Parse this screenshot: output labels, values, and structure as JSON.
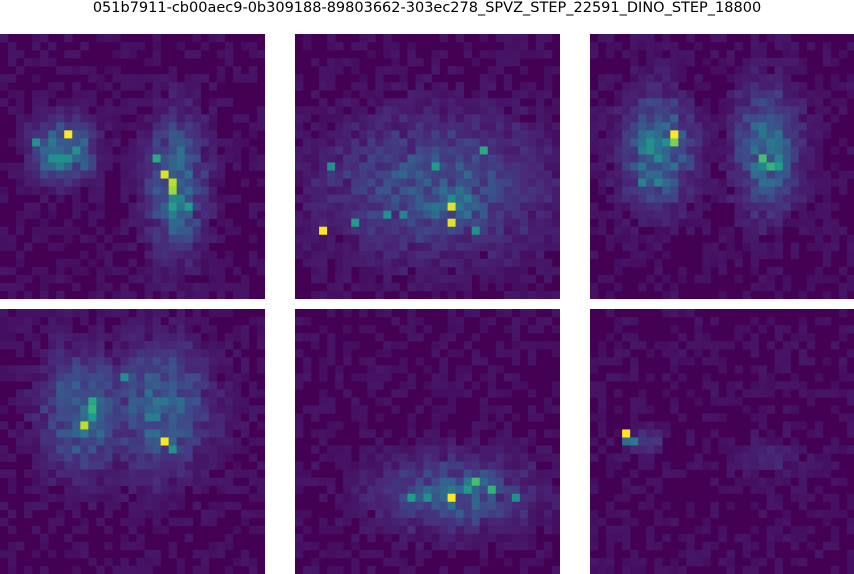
{
  "title": "051b7911-cb00aec9-0b309188-89803662-303ec278_SPVZ_STEP_22591_DINO_STEP_18800",
  "colormap": "viridis",
  "colors": {
    "background": "#ffffff",
    "low": "#440154",
    "high": "#fde725"
  },
  "chart_data": [
    {
      "type": "heatmap",
      "grid": [
        33,
        33
      ],
      "axes": "off",
      "value_range": [
        0,
        1
      ],
      "blobs": [
        {
          "col": 7.5,
          "row": 14,
          "rx": 3.2,
          "ry": 3.2,
          "v": 0.45
        },
        {
          "col": 21.5,
          "row": 18.5,
          "rx": 3.2,
          "ry": 7.5,
          "v": 0.32
        },
        {
          "col": 21,
          "row": 20,
          "rx": 1.2,
          "ry": 3,
          "v": 0.45
        }
      ],
      "hot_cells": [
        {
          "col": 8,
          "row": 12,
          "v": 1.0
        },
        {
          "col": 20,
          "row": 17,
          "v": 0.95
        },
        {
          "col": 21,
          "row": 18,
          "v": 0.9
        },
        {
          "col": 21,
          "row": 19,
          "v": 0.85
        },
        {
          "col": 19,
          "row": 15,
          "v": 0.6
        },
        {
          "col": 4,
          "row": 13,
          "v": 0.5
        },
        {
          "col": 23,
          "row": 21,
          "v": 0.55
        }
      ]
    },
    {
      "type": "heatmap",
      "grid": [
        33,
        33
      ],
      "axes": "off",
      "value_range": [
        0,
        1
      ],
      "blobs": [
        {
          "col": 17,
          "row": 18.5,
          "rx": 12,
          "ry": 7.5,
          "v": 0.22
        },
        {
          "col": 19,
          "row": 20,
          "rx": 6,
          "ry": 4.5,
          "v": 0.3
        }
      ],
      "hot_cells": [
        {
          "col": 3,
          "row": 24,
          "v": 1.0
        },
        {
          "col": 19,
          "row": 21,
          "v": 0.95
        },
        {
          "col": 19,
          "row": 23,
          "v": 0.95
        },
        {
          "col": 23,
          "row": 14,
          "v": 0.6
        },
        {
          "col": 17,
          "row": 16,
          "v": 0.55
        },
        {
          "col": 11,
          "row": 22,
          "v": 0.5
        },
        {
          "col": 7,
          "row": 23,
          "v": 0.55
        },
        {
          "col": 4,
          "row": 16,
          "v": 0.5
        },
        {
          "col": 22,
          "row": 24,
          "v": 0.5
        },
        {
          "col": 13,
          "row": 22,
          "v": 0.45
        }
      ]
    },
    {
      "type": "heatmap",
      "grid": [
        33,
        33
      ],
      "axes": "off",
      "value_range": [
        0,
        1
      ],
      "blobs": [
        {
          "col": 8,
          "row": 14,
          "rx": 3.8,
          "ry": 6.2,
          "v": 0.35
        },
        {
          "col": 21.5,
          "row": 14,
          "rx": 3.5,
          "ry": 6.5,
          "v": 0.34
        }
      ],
      "hot_cells": [
        {
          "col": 10,
          "row": 12,
          "v": 1.0
        },
        {
          "col": 10,
          "row": 13,
          "v": 0.8
        },
        {
          "col": 21,
          "row": 15,
          "v": 0.7
        },
        {
          "col": 22,
          "row": 16,
          "v": 0.65
        },
        {
          "col": 23,
          "row": 16,
          "v": 0.55
        },
        {
          "col": 9,
          "row": 13,
          "v": 0.5
        },
        {
          "col": 6,
          "row": 18,
          "v": 0.45
        },
        {
          "col": 8,
          "row": 18,
          "v": 0.45
        }
      ]
    },
    {
      "type": "heatmap",
      "grid": [
        33,
        33
      ],
      "axes": "off",
      "value_range": [
        0,
        1
      ],
      "blobs": [
        {
          "col": 10,
          "row": 12.5,
          "rx": 4.5,
          "ry": 6.5,
          "v": 0.3
        },
        {
          "col": 19.5,
          "row": 12,
          "rx": 5.5,
          "ry": 7,
          "v": 0.28
        },
        {
          "col": 11,
          "row": 12.5,
          "rx": 1.3,
          "ry": 3.5,
          "v": 0.45
        }
      ],
      "hot_cells": [
        {
          "col": 20,
          "row": 16,
          "v": 1.0
        },
        {
          "col": 10,
          "row": 14,
          "v": 0.9
        },
        {
          "col": 11,
          "row": 11,
          "v": 0.6
        },
        {
          "col": 15,
          "row": 8,
          "v": 0.5
        },
        {
          "col": 21,
          "row": 17,
          "v": 0.5
        }
      ]
    },
    {
      "type": "heatmap",
      "grid": [
        33,
        33
      ],
      "axes": "off",
      "value_range": [
        0,
        1
      ],
      "blobs": [
        {
          "col": 19.5,
          "row": 22.5,
          "rx": 8,
          "ry": 4,
          "v": 0.25
        },
        {
          "col": 21.5,
          "row": 22,
          "rx": 4,
          "ry": 1.6,
          "v": 0.35
        }
      ],
      "hot_cells": [
        {
          "col": 19,
          "row": 23,
          "v": 1.0
        },
        {
          "col": 22,
          "row": 21,
          "v": 0.7
        },
        {
          "col": 24,
          "row": 22,
          "v": 0.65
        },
        {
          "col": 14,
          "row": 23,
          "v": 0.55
        },
        {
          "col": 16,
          "row": 23,
          "v": 0.5
        },
        {
          "col": 27,
          "row": 23,
          "v": 0.5
        }
      ]
    },
    {
      "type": "heatmap",
      "grid": [
        33,
        33
      ],
      "axes": "off",
      "value_range": [
        0,
        1
      ],
      "blobs": [
        {
          "col": 6.5,
          "row": 16,
          "rx": 2,
          "ry": 1.5,
          "v": 0.12
        },
        {
          "col": 22,
          "row": 18,
          "rx": 3.5,
          "ry": 2.5,
          "v": 0.06
        }
      ],
      "hot_cells": [
        {
          "col": 4,
          "row": 15,
          "v": 1.0
        },
        {
          "col": 5,
          "row": 16,
          "v": 0.4
        },
        {
          "col": 4,
          "row": 16,
          "v": 0.35
        }
      ]
    }
  ]
}
